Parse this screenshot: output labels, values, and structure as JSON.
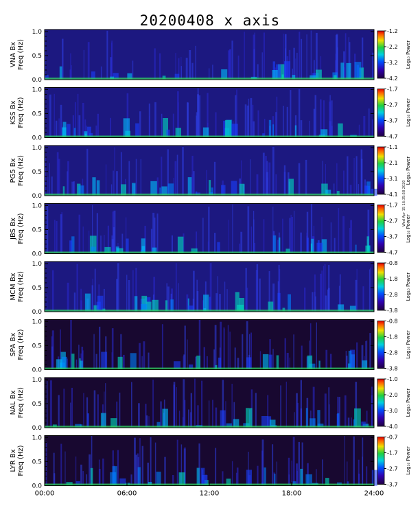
{
  "title": "20200408 x axis",
  "stamp": "Wed Apr 15 16:35:58 2020",
  "chart_data": {
    "type": "heatmap",
    "title": "20200408 x axis",
    "x_tick_labels": [
      "00:00",
      "06:00",
      "12:00",
      "18:00",
      "24:00"
    ],
    "x_range_hours": [
      0,
      24
    ],
    "y_tick_labels": [
      "0.0",
      "0.5",
      "1.0"
    ],
    "y_range_hz": [
      0,
      1
    ],
    "colorbar_label": "Log₁₀ Power",
    "panels": [
      {
        "station": "VNA Bx",
        "ylabel": "Freq (Hz)",
        "cbar_ticks": [
          "-1.2",
          "-2.2",
          "-3.2",
          "-4.2"
        ],
        "power_range": [
          -4.2,
          -1.2
        ]
      },
      {
        "station": "KSS Bx",
        "ylabel": "Freq (Hz)",
        "cbar_ticks": [
          "-1.7",
          "-2.7",
          "-3.7",
          "-4.7"
        ],
        "power_range": [
          -4.7,
          -1.7
        ]
      },
      {
        "station": "PG5 Bx",
        "ylabel": "Freq (Hz)",
        "cbar_ticks": [
          "-1.1",
          "-2.1",
          "-3.1",
          "-4.1"
        ],
        "power_range": [
          -4.1,
          -1.1
        ]
      },
      {
        "station": "JBS Bx",
        "ylabel": "Freq (Hz)",
        "cbar_ticks": [
          "-1.7",
          "-2.7",
          "-3.7",
          "-4.7"
        ],
        "power_range": [
          -4.7,
          -1.7
        ]
      },
      {
        "station": "MCM Bx",
        "ylabel": "Freq (Hz)",
        "cbar_ticks": [
          "-0.8",
          "-1.8",
          "-2.8",
          "-3.8"
        ],
        "power_range": [
          -3.8,
          -0.8
        ]
      },
      {
        "station": "SPA Bx",
        "ylabel": "Freq (Hz)",
        "cbar_ticks": [
          "-0.8",
          "-1.8",
          "-2.8",
          "-3.8"
        ],
        "power_range": [
          -3.8,
          -0.8
        ]
      },
      {
        "station": "NAL Bx",
        "ylabel": "Freq (Hz)",
        "cbar_ticks": [
          "-1.0",
          "-2.0",
          "-3.0",
          "-4.0"
        ],
        "power_range": [
          -4.0,
          -1.0
        ]
      },
      {
        "station": "LYR Bx",
        "ylabel": "Freq (Hz)",
        "cbar_ticks": [
          "-0.7",
          "-1.7",
          "-2.7",
          "-3.7"
        ],
        "power_range": [
          -3.7,
          -0.7
        ]
      }
    ]
  }
}
